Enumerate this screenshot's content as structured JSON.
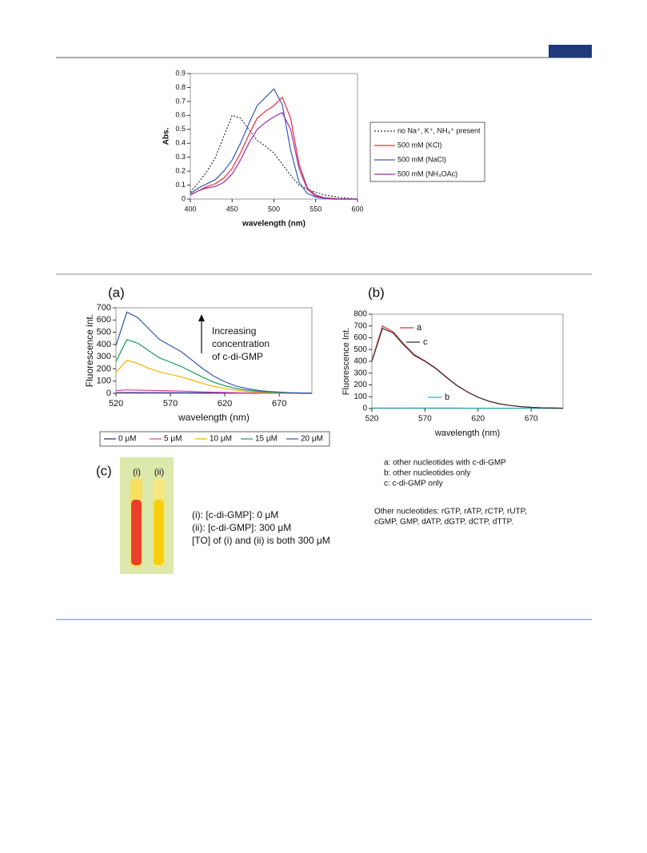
{
  "chart_data": [
    {
      "type": "line",
      "ylabel": "Abs.",
      "xlabel": "wavelength (nm)",
      "xlim": [
        400,
        600
      ],
      "xticks": [
        400,
        450,
        500,
        550,
        600
      ],
      "ylim": [
        0,
        0.9
      ],
      "yticks": [
        0,
        0.1,
        0.2,
        0.3,
        0.4,
        0.5,
        0.6,
        0.7,
        0.8,
        0.9
      ],
      "x": [
        400,
        410,
        420,
        430,
        440,
        450,
        460,
        470,
        480,
        490,
        500,
        510,
        520,
        530,
        540,
        550,
        560,
        570,
        580,
        590,
        600
      ],
      "series": [
        {
          "name": "no Na⁺, K⁺, NH₄⁺ present",
          "color": "#333333",
          "style": "dotted",
          "values": [
            0.05,
            0.12,
            0.2,
            0.3,
            0.45,
            0.6,
            0.58,
            0.5,
            0.42,
            0.38,
            0.33,
            0.25,
            0.17,
            0.1,
            0.07,
            0.05,
            0.03,
            0.02,
            0.01,
            0.005,
            0
          ]
        },
        {
          "name": "500 mM (KCl)",
          "color": "#e8303a",
          "style": "solid",
          "values": [
            0.03,
            0.06,
            0.09,
            0.11,
            0.15,
            0.22,
            0.33,
            0.46,
            0.58,
            0.63,
            0.67,
            0.73,
            0.58,
            0.25,
            0.08,
            0.03,
            0.01,
            0.005,
            0,
            0,
            0
          ]
        },
        {
          "name": "500 mM (NaCl)",
          "color": "#3a5bb5",
          "style": "solid",
          "values": [
            0.04,
            0.08,
            0.11,
            0.14,
            0.2,
            0.28,
            0.4,
            0.54,
            0.67,
            0.73,
            0.79,
            0.68,
            0.35,
            0.12,
            0.04,
            0.015,
            0.005,
            0,
            0,
            0,
            0
          ]
        },
        {
          "name": "500 mM (NH₄OAc)",
          "color": "#9b30a8",
          "style": "solid",
          "values": [
            0.03,
            0.06,
            0.08,
            0.09,
            0.12,
            0.18,
            0.28,
            0.4,
            0.5,
            0.55,
            0.59,
            0.62,
            0.5,
            0.22,
            0.07,
            0.02,
            0.01,
            0,
            0,
            0,
            0
          ]
        }
      ]
    },
    {
      "type": "line",
      "title": "(a)",
      "ylabel": "Fluorescence int.",
      "xlabel": "wavelength (nm)",
      "annotation": [
        "Increasing",
        "concentration",
        "of c-di-GMP"
      ],
      "xlim": [
        520,
        700
      ],
      "xticks": [
        520,
        570,
        620,
        670
      ],
      "ylim": [
        0,
        700
      ],
      "yticks": [
        0,
        100,
        200,
        300,
        400,
        500,
        600,
        700
      ],
      "x": [
        520,
        530,
        540,
        550,
        560,
        570,
        580,
        590,
        600,
        610,
        620,
        630,
        640,
        650,
        660,
        670,
        680,
        690,
        700
      ],
      "series": [
        {
          "name": "0 μM",
          "color": "#2b2b8c",
          "values": [
            5,
            6,
            6,
            5,
            5,
            5,
            4,
            4,
            3,
            3,
            2,
            2,
            2,
            1,
            1,
            1,
            1,
            0,
            0
          ]
        },
        {
          "name": "5 μM",
          "color": "#d63fa0",
          "values": [
            22,
            28,
            26,
            24,
            22,
            20,
            18,
            15,
            12,
            9,
            7,
            5,
            3,
            2,
            1,
            1,
            0,
            0,
            0
          ]
        },
        {
          "name": "10 μM",
          "color": "#f2b400",
          "values": [
            170,
            270,
            245,
            205,
            175,
            155,
            135,
            108,
            80,
            56,
            38,
            25,
            16,
            10,
            6,
            4,
            2,
            1,
            1
          ]
        },
        {
          "name": "15 μM",
          "color": "#1a9a5a",
          "values": [
            260,
            440,
            410,
            350,
            290,
            255,
            220,
            175,
            130,
            90,
            62,
            40,
            26,
            17,
            10,
            7,
            4,
            2,
            1
          ]
        },
        {
          "name": "20 μM",
          "color": "#3557a8",
          "values": [
            390,
            665,
            620,
            530,
            440,
            390,
            340,
            270,
            200,
            140,
            95,
            60,
            40,
            25,
            15,
            10,
            5,
            3,
            2
          ]
        }
      ]
    },
    {
      "type": "line",
      "title": "(b)",
      "ylabel": "Fluorescence Int.",
      "xlabel": "wavelength (nm)",
      "xlim": [
        520,
        700
      ],
      "xticks": [
        520,
        570,
        620,
        670
      ],
      "ylim": [
        0,
        800
      ],
      "yticks": [
        0,
        100,
        200,
        300,
        400,
        500,
        600,
        700,
        800
      ],
      "x": [
        520,
        530,
        540,
        550,
        560,
        570,
        580,
        590,
        600,
        610,
        620,
        630,
        640,
        650,
        660,
        670,
        680,
        690,
        700
      ],
      "series": [
        {
          "name": "a",
          "color": "#e8303a",
          "values": [
            405,
            700,
            650,
            548,
            456,
            404,
            344,
            268,
            197,
            141,
            96,
            63,
            41,
            26,
            16,
            10,
            6,
            4,
            3
          ]
        },
        {
          "name": "b",
          "color": "#2ab0b8",
          "values": [
            5,
            5,
            5,
            5,
            4,
            4,
            4,
            4,
            4,
            3,
            3,
            3,
            3,
            3,
            2,
            2,
            2,
            2,
            2
          ]
        },
        {
          "name": "c",
          "color": "#333333",
          "values": [
            400,
            680,
            640,
            540,
            450,
            400,
            340,
            265,
            195,
            140,
            95,
            62,
            40,
            26,
            16,
            10,
            6,
            4,
            3
          ]
        }
      ]
    }
  ],
  "panel_c": {
    "label": "(c)",
    "tubes": [
      "(i)",
      "(ii)"
    ],
    "text": [
      "(i): [c-di-GMP]: 0 μM",
      "(ii): [c-di-GMP]: 300 μM",
      "[TO] of (i) and (ii) is both 300 μM"
    ]
  },
  "notes": [
    "a: other nucleotides with c-di-GMP",
    "b: other nucleotides only",
    "c: c-di-GMP only"
  ],
  "other_nucleotides": [
    "Other nucleotides: rGTP, rATP, rCTP, rUTP,",
    "cGMP, GMP, dATP, dGTP, dCTP, dTTP."
  ]
}
